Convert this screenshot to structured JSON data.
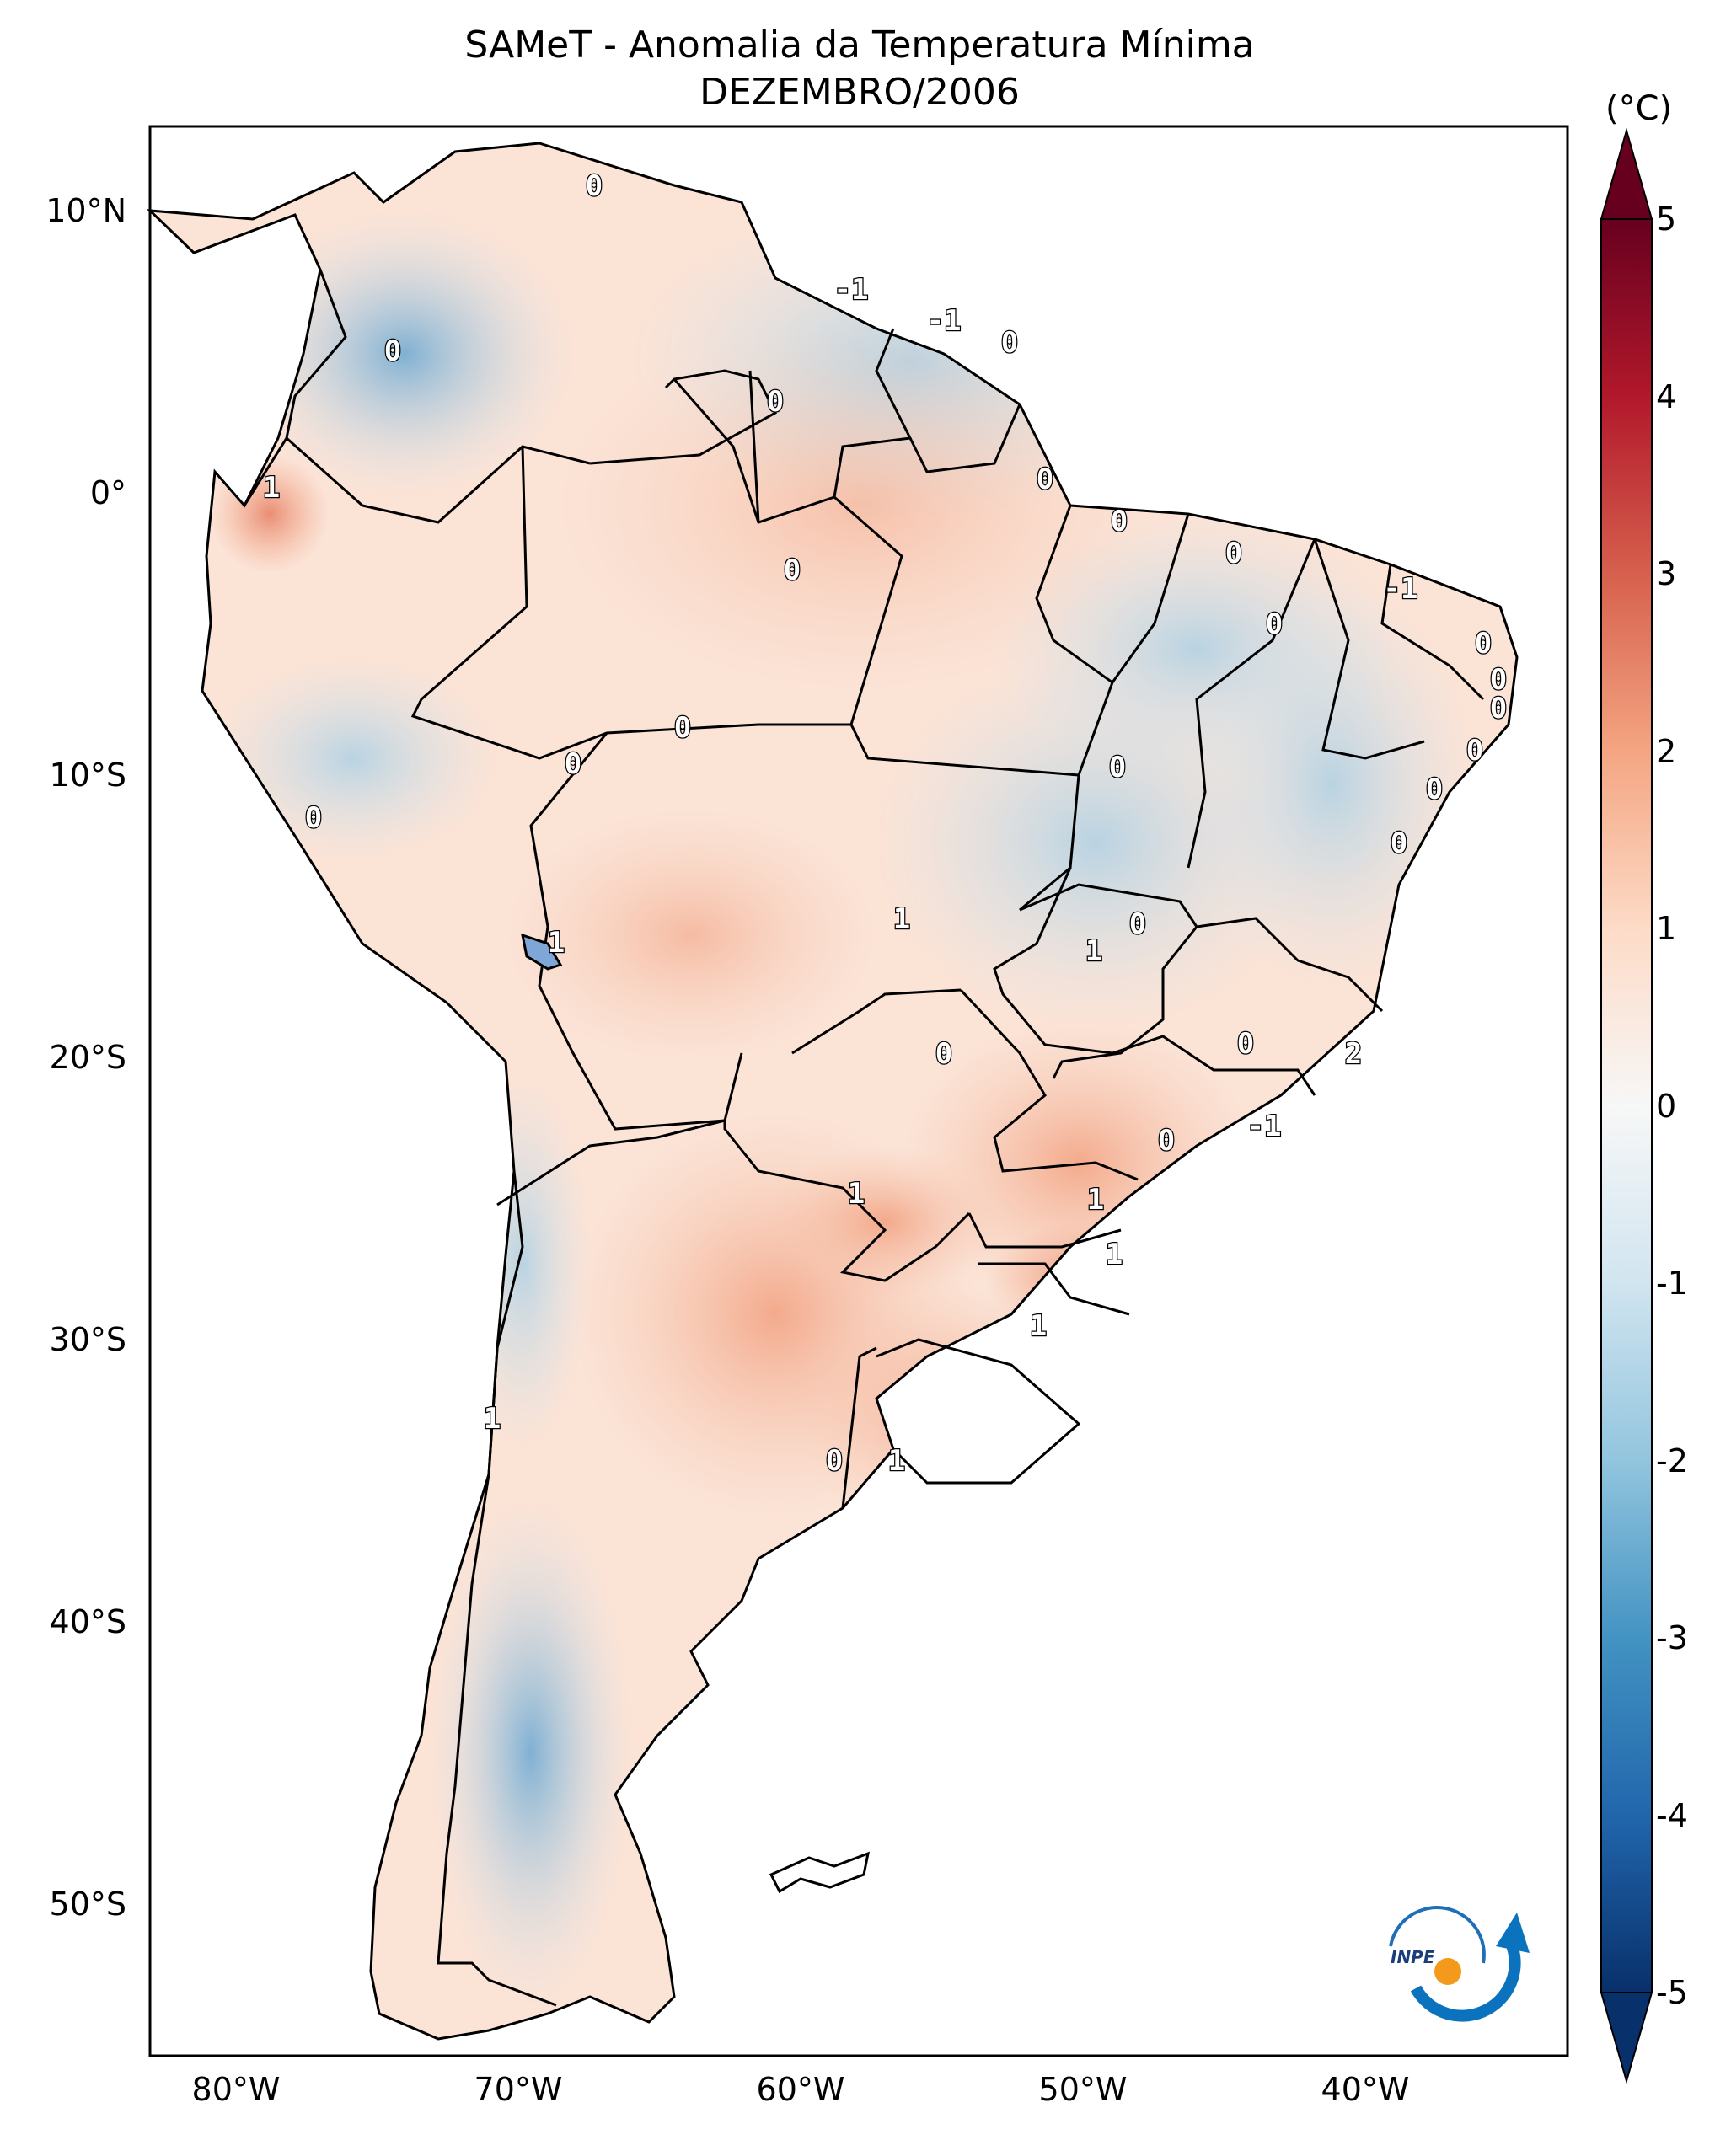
{
  "map": {
    "title_line1": "SAMeT - Anomalia da Temperatura Mínima",
    "title_line2": "DEZEMBRO/2006",
    "lat_ticks": [
      "10°N",
      "0°",
      "10°S",
      "20°S",
      "30°S",
      "40°S",
      "50°S"
    ],
    "lon_ticks": [
      "80°W",
      "70°W",
      "60°W",
      "50°W",
      "40°W"
    ],
    "colorbar": {
      "unit": "(°C)",
      "ticks": [
        "5",
        "4",
        "3",
        "2",
        "1",
        "0",
        "-1",
        "-2",
        "-3",
        "-4",
        "-5"
      ],
      "min": -5,
      "max": 5,
      "colors": [
        "#08306b",
        "#2166ac",
        "#4393c3",
        "#92c5de",
        "#d1e5f0",
        "#f7f7f7",
        "#fddbc7",
        "#f4a582",
        "#d6604d",
        "#b2182b",
        "#67001f"
      ]
    },
    "contour_labels": [
      "0",
      "-1",
      "-1",
      "0",
      "0",
      "0",
      "0",
      "0",
      "0",
      "0",
      "-1",
      "0",
      "0",
      "0",
      "0",
      "0",
      "0",
      "0",
      "0",
      "0",
      "0",
      "0",
      "1",
      "0",
      "1",
      "1",
      "0",
      "0",
      "2",
      "-1",
      "0",
      "1",
      "1",
      "1",
      "1",
      "1",
      "0",
      "1",
      "1"
    ],
    "logo_text": "INPE"
  }
}
